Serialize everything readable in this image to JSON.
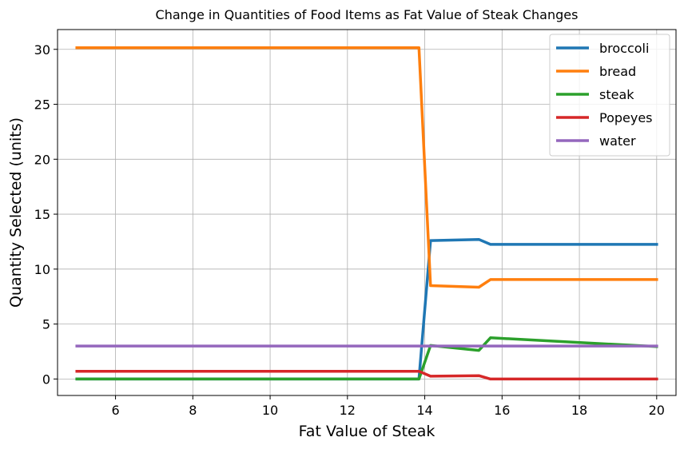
{
  "chart_data": {
    "type": "line",
    "title": "Change in Quantities of Food Items as Fat Value of Steak Changes",
    "xlabel": "Fat Value of Steak",
    "ylabel": "Quantity Selected (units)",
    "xlim": [
      4.5,
      20.5
    ],
    "ylim": [
      -1.5,
      31.8
    ],
    "xticks": [
      6,
      8,
      10,
      12,
      14,
      16,
      18,
      20
    ],
    "yticks": [
      0,
      5,
      10,
      15,
      20,
      25,
      30
    ],
    "grid": true,
    "legend_position": "top-right",
    "series": [
      {
        "name": "broccoli",
        "color": "#1f77b4",
        "points": [
          [
            5,
            0
          ],
          [
            13.85,
            0
          ],
          [
            14.15,
            12.6
          ],
          [
            15.4,
            12.7
          ],
          [
            15.7,
            12.25
          ],
          [
            20,
            12.25
          ]
        ]
      },
      {
        "name": "bread",
        "color": "#ff7f0e",
        "points": [
          [
            5,
            30.15
          ],
          [
            13.85,
            30.15
          ],
          [
            14.15,
            8.5
          ],
          [
            15.4,
            8.35
          ],
          [
            15.7,
            9.05
          ],
          [
            20,
            9.05
          ]
        ]
      },
      {
        "name": "steak",
        "color": "#2ca02c",
        "points": [
          [
            5,
            0
          ],
          [
            13.85,
            0
          ],
          [
            14.15,
            3.05
          ],
          [
            15.4,
            2.6
          ],
          [
            15.7,
            3.75
          ],
          [
            20,
            2.95
          ]
        ]
      },
      {
        "name": "Popeyes",
        "color": "#d62728",
        "points": [
          [
            5,
            0.7
          ],
          [
            13.85,
            0.7
          ],
          [
            14.15,
            0.25
          ],
          [
            15.4,
            0.3
          ],
          [
            15.7,
            0
          ],
          [
            20,
            0
          ]
        ]
      },
      {
        "name": "water",
        "color": "#9467bd",
        "points": [
          [
            5,
            3
          ],
          [
            13.85,
            3
          ],
          [
            14.15,
            3
          ],
          [
            15.4,
            3
          ],
          [
            15.7,
            3
          ],
          [
            20,
            3
          ]
        ]
      }
    ]
  }
}
